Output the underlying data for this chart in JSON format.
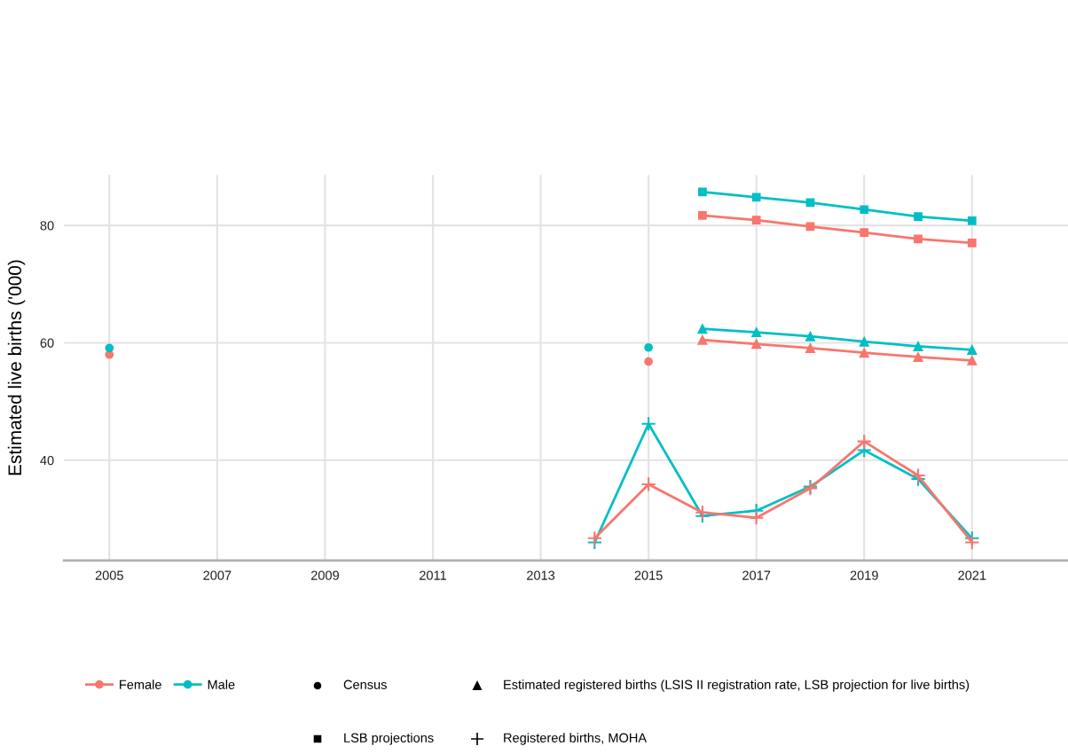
{
  "chart_data": {
    "type": "line",
    "ylabel": "Estimated live births ('000)",
    "xlim": [
      2004.16,
      2022.78
    ],
    "xticks": [
      2005,
      2007,
      2009,
      2011,
      2013,
      2015,
      2017,
      2019,
      2021
    ],
    "ylim": [
      22.9,
      88.6
    ],
    "yticks": [
      40,
      60,
      80
    ],
    "grid": true,
    "legend": "bottom",
    "annotations": [
      "Census",
      "Estimated registered births (LSIS II registration rate, LSB projection for live births)",
      "LSB projections",
      "Registered births, MOHA"
    ],
    "series": [
      {
        "name": "Female",
        "type": "scatter",
        "marker": "circle",
        "color": "#f8766d",
        "x": [
          2005,
          2015
        ],
        "values": [
          58.0,
          56.8
        ]
      },
      {
        "name": "Male",
        "type": "scatter",
        "marker": "circle",
        "color": "#00bfc4",
        "x": [
          2005,
          2015
        ],
        "values": [
          59.1,
          59.2
        ]
      },
      {
        "marker": "triangle",
        "color": "#f8766d",
        "x": [
          2016,
          2017,
          2018,
          2019,
          2020,
          2021
        ],
        "values": [
          60.5,
          59.8,
          59.1,
          58.3,
          57.6,
          57.0
        ]
      },
      {
        "marker": "triangle",
        "color": "#00bfc4",
        "x": [
          2016,
          2017,
          2018,
          2019,
          2020,
          2021
        ],
        "values": [
          62.4,
          61.8,
          61.1,
          60.2,
          59.4,
          58.8
        ]
      },
      {
        "marker": "square",
        "color": "#f8766d",
        "x": [
          2016,
          2017,
          2018,
          2019,
          2020,
          2021
        ],
        "values": [
          81.7,
          80.9,
          79.8,
          78.8,
          77.7,
          77.0
        ]
      },
      {
        "marker": "square",
        "color": "#00bfc4",
        "x": [
          2016,
          2017,
          2018,
          2019,
          2020,
          2021
        ],
        "values": [
          85.7,
          84.8,
          83.9,
          82.7,
          81.5,
          80.8
        ]
      },
      {
        "marker": "cross",
        "color": "#f8766d",
        "x": [
          2014,
          2015,
          2016,
          2017,
          2018,
          2019,
          2020,
          2021
        ],
        "values": [
          26.7,
          35.9,
          31.1,
          30.2,
          35.2,
          43.2,
          37.4,
          26.0
        ]
      },
      {
        "marker": "cross",
        "color": "#00bfc4",
        "x": [
          2014,
          2015,
          2016,
          2017,
          2018,
          2019,
          2020,
          2021
        ],
        "values": [
          26.0,
          46.2,
          30.5,
          31.4,
          35.5,
          41.7,
          36.8,
          26.7
        ]
      }
    ]
  }
}
